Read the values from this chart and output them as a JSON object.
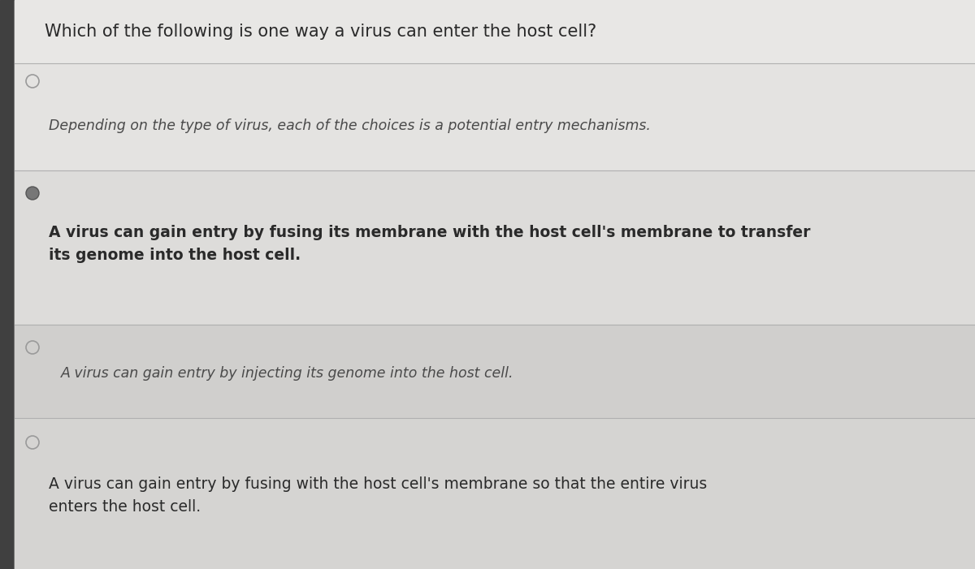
{
  "title": "Which of the following is one way a virus can enter the host cell?",
  "title_fontsize": 15,
  "background_color": "#c8c8c8",
  "page_color": "#e8e7e5",
  "separator_color": "#b0b0b0",
  "text_color": "#2a2a2a",
  "light_text_color": "#4a4a4a",
  "answer_text": "Depending on the type of virus, each of the choices is a potential entry mechanisms.",
  "answer_fontsize": 12.5,
  "choices": [
    "A virus can gain entry by fusing its membrane with the host cell's membrane to transfer\nits genome into the host cell.",
    "A virus can gain entry by injecting its genome into the host cell.",
    "A virus can gain entry by fusing with the host cell's membrane so that the entire virus\nenters the host cell."
  ],
  "choice_fontsize": 13.5,
  "radio_color": "#9a9a9a",
  "radio_selected_color": "#555555",
  "row_bg": [
    "#e8e7e5",
    "#dddcda",
    "#e0dfe0",
    "#d8d7d5"
  ],
  "title_row_bg": "#e4e3e1",
  "answer_row_bg": "#e6e5e3",
  "choice1_row_bg": "#dddcda",
  "choice2_row_bg": "#d5d4d2",
  "choice3_row_bg": "#d8d7d5"
}
